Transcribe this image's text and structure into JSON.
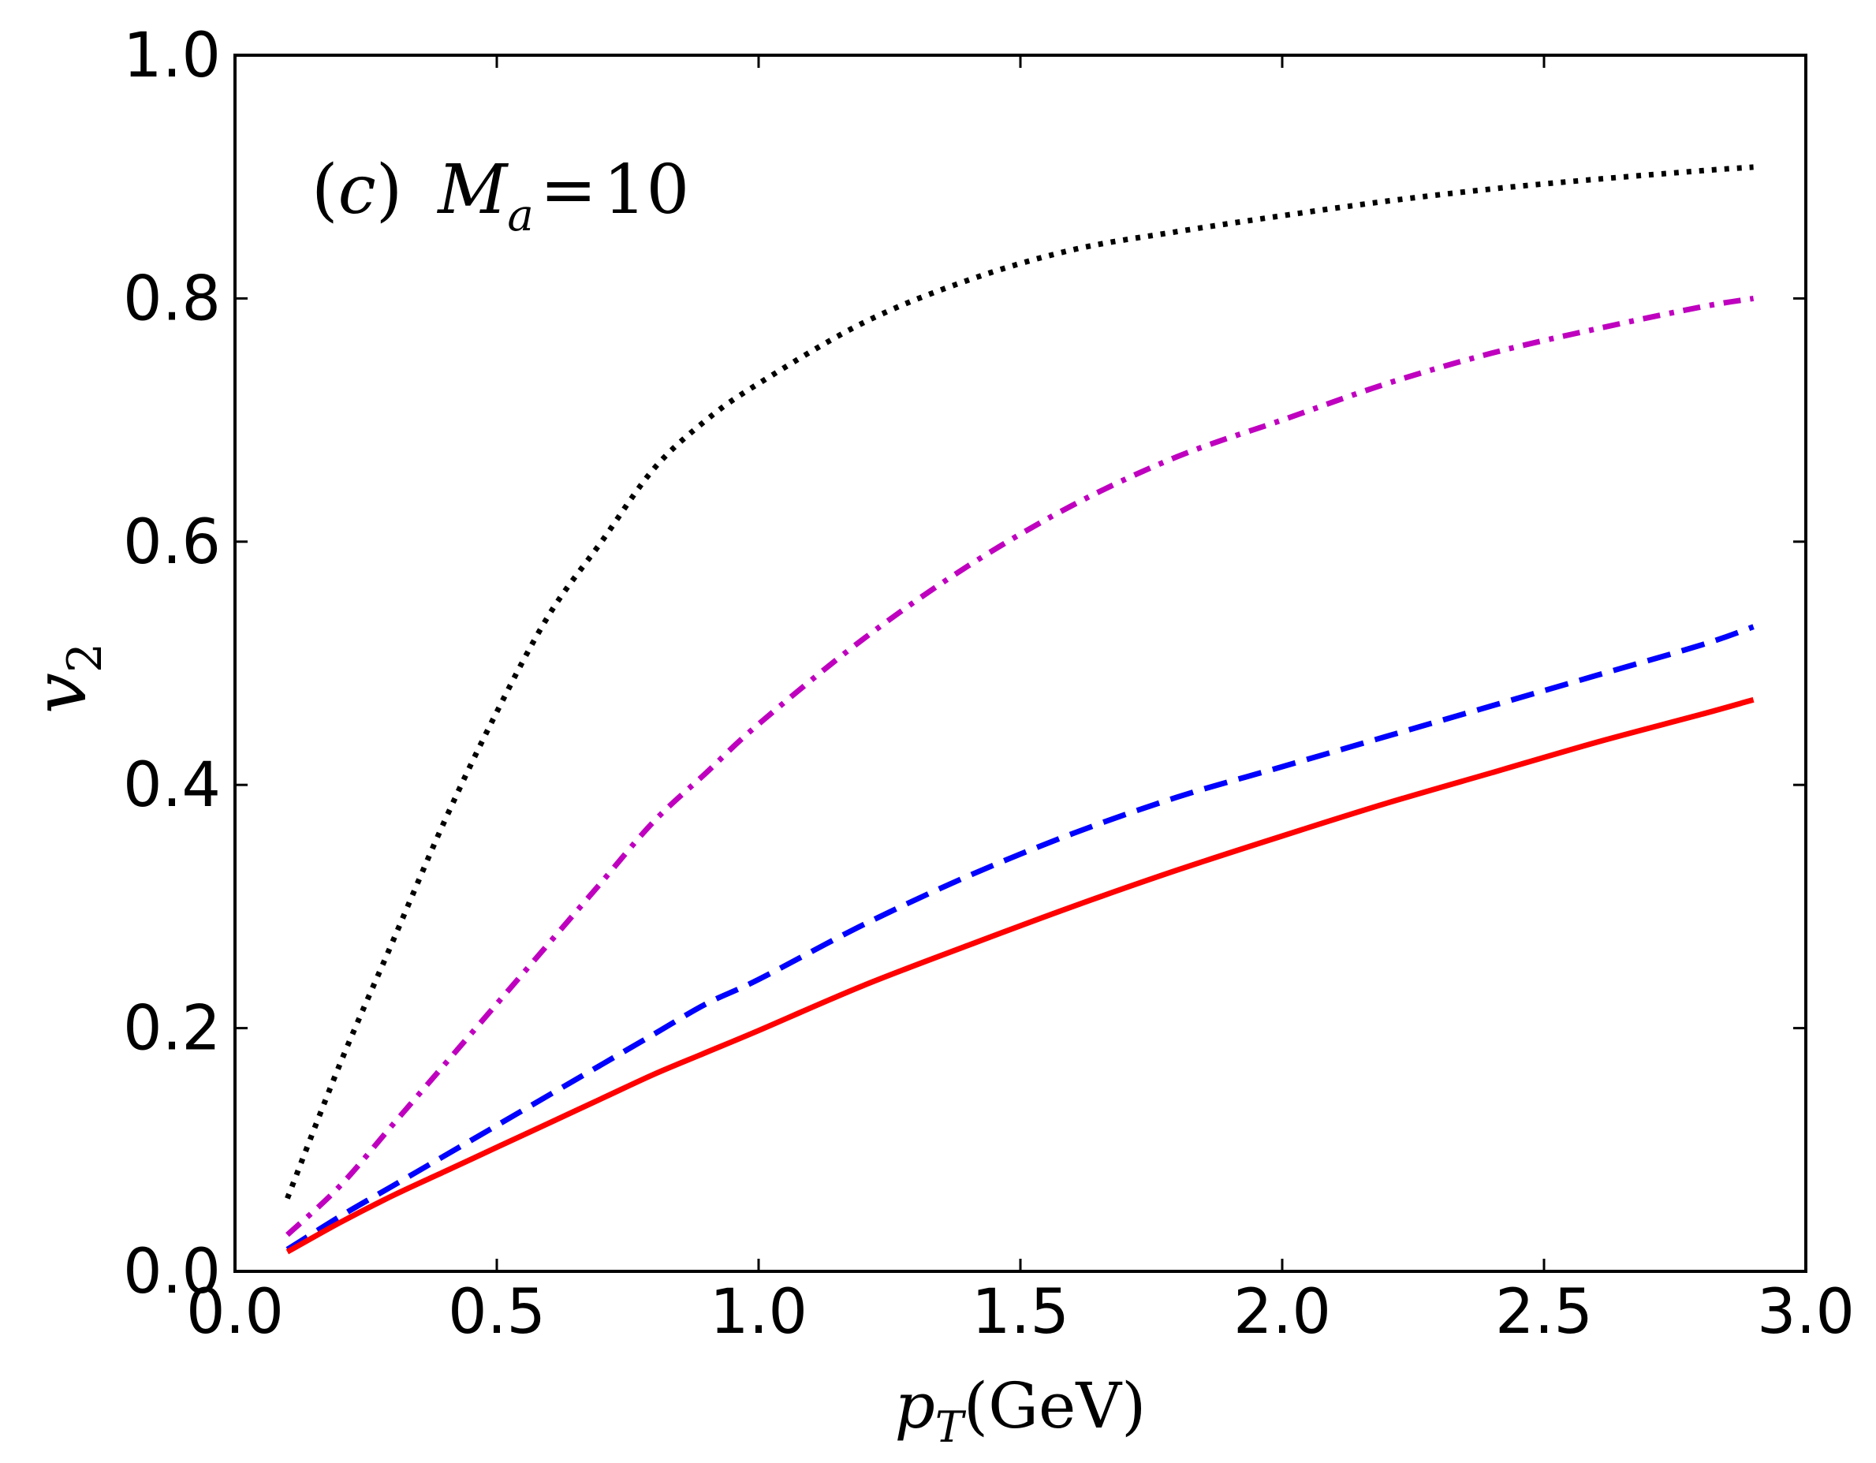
{
  "chart_data": {
    "type": "line",
    "title": "",
    "annotation": {
      "paren_open": "(",
      "letter": "c",
      "paren_close": ")",
      "symbol": "M",
      "subscript": "a",
      "equals": "=",
      "value": "10"
    },
    "xlabel": {
      "symbol": "p",
      "subscript": "T",
      "unit": "(GeV)"
    },
    "ylabel": {
      "symbol": "v",
      "subscript": "2"
    },
    "xlim": [
      0.0,
      3.0
    ],
    "ylim": [
      0.0,
      1.0
    ],
    "xticks": [
      0.0,
      0.5,
      1.0,
      1.5,
      2.0,
      2.5,
      3.0
    ],
    "yticks": [
      0.0,
      0.2,
      0.4,
      0.6,
      0.8,
      1.0
    ],
    "xtick_labels": [
      "0.0",
      "0.5",
      "1.0",
      "1.5",
      "2.0",
      "2.5",
      "3.0"
    ],
    "ytick_labels": [
      "0.0",
      "0.2",
      "0.4",
      "0.6",
      "0.8",
      "1.0"
    ],
    "grid": false,
    "legend": "none",
    "series": [
      {
        "name": "dotted-black",
        "color": "#000000",
        "style": "dotted",
        "x": [
          0.1,
          0.2,
          0.3,
          0.4,
          0.5,
          0.6,
          0.7,
          0.8,
          0.9,
          1.0,
          1.2,
          1.4,
          1.6,
          1.8,
          2.0,
          2.2,
          2.4,
          2.6,
          2.8,
          2.9
        ],
        "y": [
          0.06,
          0.17,
          0.27,
          0.37,
          0.46,
          0.54,
          0.6,
          0.66,
          0.7,
          0.73,
          0.78,
          0.815,
          0.84,
          0.855,
          0.868,
          0.88,
          0.89,
          0.898,
          0.905,
          0.908
        ]
      },
      {
        "name": "dashdot-magenta",
        "color": "#bf00bf",
        "style": "dashdot",
        "x": [
          0.1,
          0.2,
          0.3,
          0.4,
          0.5,
          0.6,
          0.7,
          0.8,
          0.9,
          1.0,
          1.2,
          1.4,
          1.6,
          1.8,
          2.0,
          2.2,
          2.4,
          2.6,
          2.8,
          2.9
        ],
        "y": [
          0.03,
          0.07,
          0.12,
          0.17,
          0.22,
          0.27,
          0.32,
          0.37,
          0.41,
          0.45,
          0.52,
          0.58,
          0.63,
          0.67,
          0.7,
          0.73,
          0.755,
          0.775,
          0.793,
          0.8
        ]
      },
      {
        "name": "dashed-blue",
        "color": "#0000ff",
        "style": "dashed",
        "x": [
          0.1,
          0.2,
          0.3,
          0.4,
          0.5,
          0.6,
          0.7,
          0.8,
          0.9,
          1.0,
          1.2,
          1.4,
          1.6,
          1.8,
          2.0,
          2.2,
          2.4,
          2.6,
          2.8,
          2.9
        ],
        "y": [
          0.018,
          0.045,
          0.07,
          0.095,
          0.12,
          0.145,
          0.17,
          0.195,
          0.22,
          0.24,
          0.285,
          0.325,
          0.36,
          0.39,
          0.415,
          0.44,
          0.465,
          0.49,
          0.515,
          0.53
        ]
      },
      {
        "name": "solid-red",
        "color": "#ff0000",
        "style": "solid",
        "x": [
          0.1,
          0.2,
          0.3,
          0.4,
          0.5,
          0.6,
          0.7,
          0.8,
          0.9,
          1.0,
          1.2,
          1.4,
          1.6,
          1.8,
          2.0,
          2.2,
          2.4,
          2.6,
          2.8,
          2.9
        ],
        "y": [
          0.016,
          0.04,
          0.062,
          0.082,
          0.102,
          0.122,
          0.142,
          0.162,
          0.18,
          0.198,
          0.235,
          0.268,
          0.3,
          0.33,
          0.358,
          0.385,
          0.41,
          0.435,
          0.458,
          0.47
        ]
      }
    ]
  }
}
